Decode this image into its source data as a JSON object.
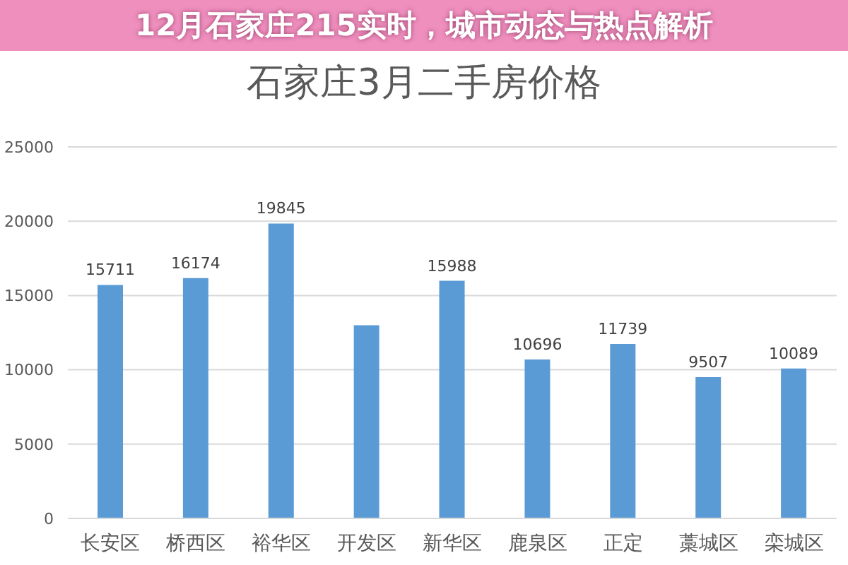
{
  "chart_data": {
    "type": "bar",
    "title": "石家庄3月二手房价格",
    "categories": [
      "长安区",
      "桥西区",
      "裕华区",
      "开发区",
      "新华区",
      "鹿泉区",
      "正定",
      "藁城区",
      "栾城区"
    ],
    "values": [
      15711,
      16174,
      19845,
      13000,
      15988,
      10696,
      11739,
      9507,
      10089
    ],
    "value_labels": [
      "15711",
      "16174",
      "19845",
      null,
      "15988",
      "10696",
      "11739",
      "9507",
      "10089"
    ],
    "color": "#5b9bd5",
    "ylim": [
      0,
      25000
    ],
    "yticks": [
      0,
      5000,
      10000,
      15000,
      20000,
      25000
    ],
    "grid": "y",
    "annotations": [
      "12月石家庄215实时，城市动态与热点解析"
    ]
  }
}
